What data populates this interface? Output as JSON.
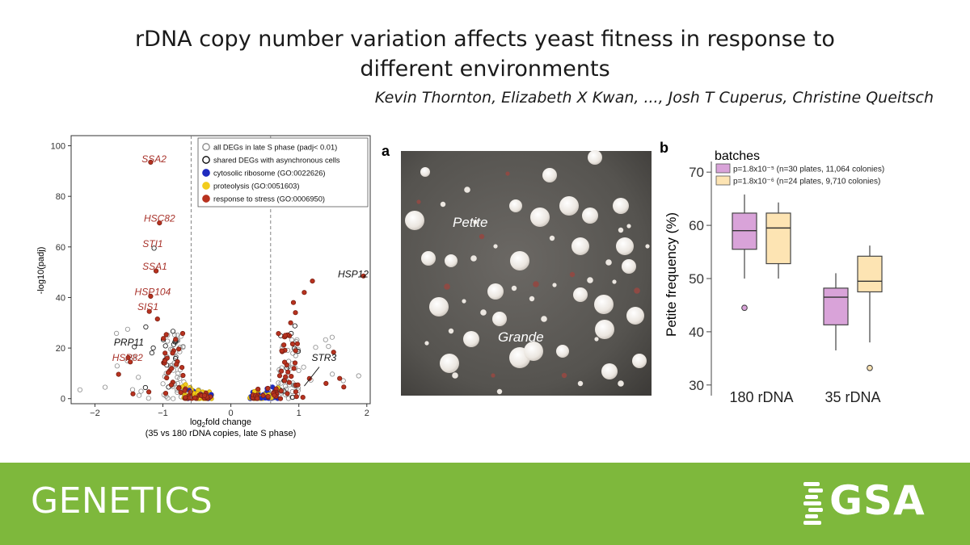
{
  "header": {
    "title_line1": "rDNA copy number variation affects yeast fitness in response to",
    "title_line2": "different environments",
    "authors": "Kevin Thornton, Elizabeth X Kwan, ..., Josh T Cuperus, Christine Queitsch"
  },
  "footer": {
    "journal": "GENETICS",
    "logo_text": "GSA",
    "color": "#7eb83c"
  },
  "chart_data": [
    {
      "type": "scatter",
      "title": "",
      "xlabel": "log2fold change",
      "xlabel_sub": "(35 vs 180 rDNA copies, late S phase)",
      "ylabel": "-log10(padj)",
      "xlim": [
        -2.35,
        2.05
      ],
      "ylim": [
        -2,
        104
      ],
      "xticks": [
        "−2",
        "−1",
        "0",
        "1",
        "2"
      ],
      "xtick_values": [
        -2,
        -1,
        0,
        1,
        2
      ],
      "yticks": [
        "0",
        "20",
        "40",
        "60",
        "80",
        "100"
      ],
      "ytick_values": [
        0,
        20,
        40,
        60,
        80,
        100
      ],
      "threshold_lines_x": [
        -0.585,
        0.585
      ],
      "legend_position": "top-right",
      "legend": [
        {
          "label": "all DEGs in late S phase (padj< 0.01)",
          "fill": "none",
          "stroke": "#888888"
        },
        {
          "label": "shared DEGs with asynchronous cells",
          "fill": "none",
          "stroke": "#000000"
        },
        {
          "label": "cytosolic ribosome (GO:0022626)",
          "fill": "#1f2bbf",
          "stroke": "#1f2bbf"
        },
        {
          "label": "proteolysis (GO:0051603)",
          "fill": "#f2cc1d",
          "stroke": "#f2cc1d"
        },
        {
          "label": "response to stress (GO:0006950)",
          "fill": "#b8321f",
          "stroke": "#b8321f"
        }
      ],
      "labels": [
        {
          "text": "SSA2",
          "x": -1.13,
          "y": 93.5,
          "color": "#a8322a"
        },
        {
          "text": "HSC82",
          "x": -1.05,
          "y": 70,
          "color": "#a8322a"
        },
        {
          "text": "STI1",
          "x": -1.15,
          "y": 60,
          "color": "#a8322a"
        },
        {
          "text": "SSA1",
          "x": -1.12,
          "y": 51,
          "color": "#a8322a"
        },
        {
          "text": "HSP104",
          "x": -1.15,
          "y": 41,
          "color": "#a8322a"
        },
        {
          "text": "SIS1",
          "x": -1.22,
          "y": 35,
          "color": "#a8322a"
        },
        {
          "text": "PRP11",
          "x": -1.5,
          "y": 21,
          "color": "#111111"
        },
        {
          "text": "HSP82",
          "x": -1.52,
          "y": 15,
          "color": "#a8322a"
        },
        {
          "text": "HSP12",
          "x": 1.8,
          "y": 48,
          "color": "#111111"
        },
        {
          "text": "STR3",
          "x": 1.37,
          "y": 15,
          "color": "#111111"
        }
      ],
      "highlighted_points": [
        {
          "x": -1.18,
          "y": 93.5,
          "cls": "stress"
        },
        {
          "x": -1.05,
          "y": 69.5,
          "cls": "stress"
        },
        {
          "x": -1.13,
          "y": 59.5,
          "cls": "shared"
        },
        {
          "x": -1.1,
          "y": 50.5,
          "cls": "stress"
        },
        {
          "x": -1.18,
          "y": 40.5,
          "cls": "stress"
        },
        {
          "x": -1.2,
          "y": 34.5,
          "cls": "stress"
        },
        {
          "x": -1.08,
          "y": 31.5,
          "cls": "stress"
        },
        {
          "x": -1.42,
          "y": 20.5,
          "cls": "shared"
        },
        {
          "x": -1.48,
          "y": 14.5,
          "cls": "stress"
        },
        {
          "x": 1.95,
          "y": 48.5,
          "cls": "stress"
        },
        {
          "x": 1.2,
          "y": 46.5,
          "cls": "stress"
        },
        {
          "x": 1.08,
          "y": 42,
          "cls": "stress"
        },
        {
          "x": 0.92,
          "y": 38,
          "cls": "stress"
        },
        {
          "x": 0.95,
          "y": 34,
          "cls": "stress"
        },
        {
          "x": 0.88,
          "y": 30,
          "cls": "stress"
        },
        {
          "x": 0.8,
          "y": 25,
          "cls": "stress"
        },
        {
          "x": -2.22,
          "y": 3.5,
          "cls": "all"
        },
        {
          "x": -1.85,
          "y": 4.5,
          "cls": "all"
        },
        {
          "x": 1.88,
          "y": 9,
          "cls": "all"
        },
        {
          "x": 1.6,
          "y": 8,
          "cls": "stress"
        },
        {
          "x": 1.4,
          "y": 6,
          "cls": "stress"
        }
      ]
    },
    {
      "type": "box",
      "panel_label": "b",
      "ylabel": "Petite frequency (%)",
      "ylim": [
        28,
        72
      ],
      "yticks": [
        "30",
        "40",
        "50",
        "60",
        "70"
      ],
      "ytick_values": [
        30,
        40,
        50,
        60,
        70
      ],
      "categories": [
        "180 rDNA",
        "35 rDNA"
      ],
      "legend_title": "batches",
      "legend_position": "top",
      "series": [
        {
          "name": "p=1.8x10⁻⁵ (n=30 plates, 11,064 colonies)",
          "color": "#d9a3d9",
          "boxes": [
            {
              "min": 50,
              "q1": 55.5,
              "median": 59,
              "q3": 62.3,
              "max": 65.8,
              "outliers": [
                44.5
              ]
            },
            {
              "min": 36.5,
              "q1": 41.3,
              "median": 46.5,
              "q3": 48.2,
              "max": 51,
              "outliers": []
            }
          ]
        },
        {
          "name": "p=1.8x10⁻⁶ (n=24 plates, 9,710 colonies)",
          "color": "#fde4b3",
          "boxes": [
            {
              "min": 50,
              "q1": 52.8,
              "median": 59.5,
              "q3": 62.3,
              "max": 64.3,
              "outliers": []
            },
            {
              "min": 38,
              "q1": 47.5,
              "median": 49.5,
              "q3": 54.2,
              "max": 56.2,
              "outliers": [
                33.2
              ]
            }
          ]
        }
      ]
    }
  ],
  "photo_panel": {
    "panel_label": "a",
    "labels": [
      "Petite",
      "Grande"
    ]
  }
}
